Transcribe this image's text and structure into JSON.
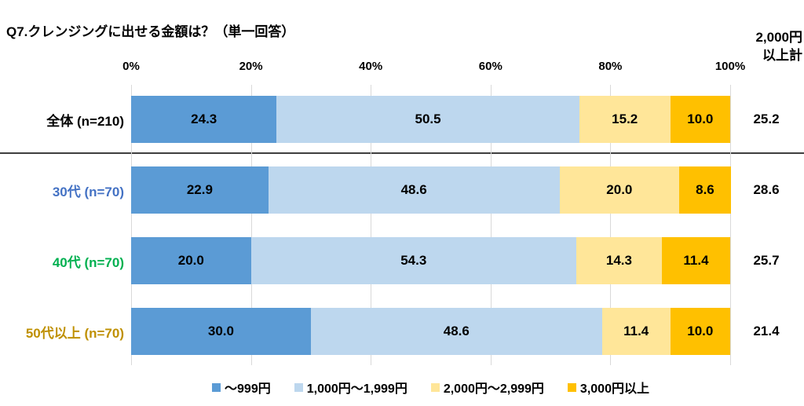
{
  "chart_data": {
    "type": "bar",
    "stacked": true,
    "orientation": "horizontal",
    "title": "Q7.クレンジングに出せる金額は？（単一回答）",
    "categories": [
      {
        "label": "全体 (n=210)",
        "label_color": "#000000"
      },
      {
        "label": "30代 (n=70)",
        "label_color": "#4472C4"
      },
      {
        "label": "40代 (n=70)",
        "label_color": "#00B050"
      },
      {
        "label": "50代以上 (n=70)",
        "label_color": "#BF9000"
      }
    ],
    "series": [
      {
        "name": "～999円",
        "color": "#5B9BD5",
        "values": [
          24.3,
          22.9,
          20.0,
          30.0
        ]
      },
      {
        "name": "1,000円～1,999円",
        "color": "#BDD7EE",
        "values": [
          50.5,
          48.6,
          54.3,
          48.6
        ]
      },
      {
        "name": "2,000円～2,999円",
        "color": "#FFE699",
        "values": [
          15.2,
          20.0,
          14.3,
          11.4
        ]
      },
      {
        "name": "3,000円以上",
        "color": "#FFC000",
        "values": [
          10.0,
          8.6,
          11.4,
          10.0
        ]
      }
    ],
    "total_column": {
      "header": "2,000円以上計",
      "header_lines": [
        "2,000円",
        "以上計"
      ],
      "values": [
        25.2,
        28.6,
        25.7,
        21.4
      ]
    },
    "x_ticks": [
      "0%",
      "20%",
      "40%",
      "60%",
      "80%",
      "100%"
    ],
    "xlim": [
      0,
      100
    ],
    "grid": true,
    "legend_position": "bottom",
    "value_decimals": 1
  }
}
